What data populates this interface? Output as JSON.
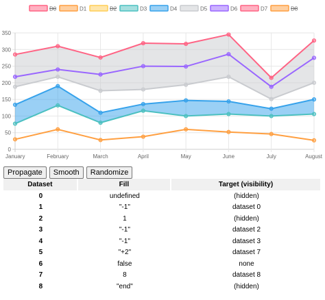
{
  "chart_data": {
    "type": "line",
    "categories": [
      "January",
      "February",
      "March",
      "April",
      "May",
      "June",
      "July",
      "August"
    ],
    "ylim": [
      0,
      350
    ],
    "yticks": [
      0,
      50,
      100,
      150,
      200,
      250,
      300,
      350
    ],
    "grid": true,
    "legend_placement": "top",
    "series": [
      {
        "name": "D0",
        "color": "#ff6384",
        "hidden": true,
        "values": null
      },
      {
        "name": "D1",
        "color": "#ff9f40",
        "hidden": false,
        "values": [
          30,
          60,
          28,
          38,
          60,
          52,
          46,
          27
        ]
      },
      {
        "name": "D2",
        "color": "#ffcd56",
        "hidden": true,
        "values": null
      },
      {
        "name": "D3",
        "color": "#4bc0c0",
        "hidden": false,
        "values": [
          77,
          132,
          80,
          116,
          100,
          106,
          100,
          106
        ]
      },
      {
        "name": "D4",
        "color": "#36a2eb",
        "hidden": false,
        "values": [
          134,
          190,
          110,
          136,
          147,
          144,
          122,
          150
        ]
      },
      {
        "name": "D5",
        "color": "#c9cbcf",
        "hidden": false,
        "values": [
          188,
          218,
          176,
          180,
          194,
          218,
          151,
          200
        ]
      },
      {
        "name": "D6",
        "color": "#9966ff",
        "hidden": false,
        "values": [
          218,
          240,
          225,
          250,
          249,
          286,
          188,
          275
        ]
      },
      {
        "name": "D7",
        "color": "#ff6384",
        "hidden": false,
        "values": [
          285,
          310,
          276,
          319,
          317,
          345,
          215,
          327
        ]
      },
      {
        "name": "D8",
        "color": "#ff9f40",
        "hidden": true,
        "values": null
      }
    ],
    "fills": [
      {
        "from": "D3",
        "to": "D4",
        "color": "#36a2eb"
      },
      {
        "from": "D5",
        "to": "D7",
        "color": "#c9cbcf"
      }
    ]
  },
  "controls": {
    "propagate": "Propagate",
    "smooth": "Smooth",
    "randomize": "Randomize"
  },
  "table": {
    "headers": [
      "Dataset",
      "Fill",
      "Target (visibility)"
    ],
    "rows": [
      {
        "dataset": "0",
        "fill": "undefined",
        "target": "(hidden)"
      },
      {
        "dataset": "1",
        "fill": "\"-1\"",
        "target": "dataset 0"
      },
      {
        "dataset": "2",
        "fill": "1",
        "target": "(hidden)"
      },
      {
        "dataset": "3",
        "fill": "\"-1\"",
        "target": "dataset 2"
      },
      {
        "dataset": "4",
        "fill": "\"-1\"",
        "target": "dataset 3"
      },
      {
        "dataset": "5",
        "fill": "\"+2\"",
        "target": "dataset 7"
      },
      {
        "dataset": "6",
        "fill": "false",
        "target": "none"
      },
      {
        "dataset": "7",
        "fill": "8",
        "target": "dataset 8"
      },
      {
        "dataset": "8",
        "fill": "\"end\"",
        "target": "(hidden)"
      }
    ]
  }
}
